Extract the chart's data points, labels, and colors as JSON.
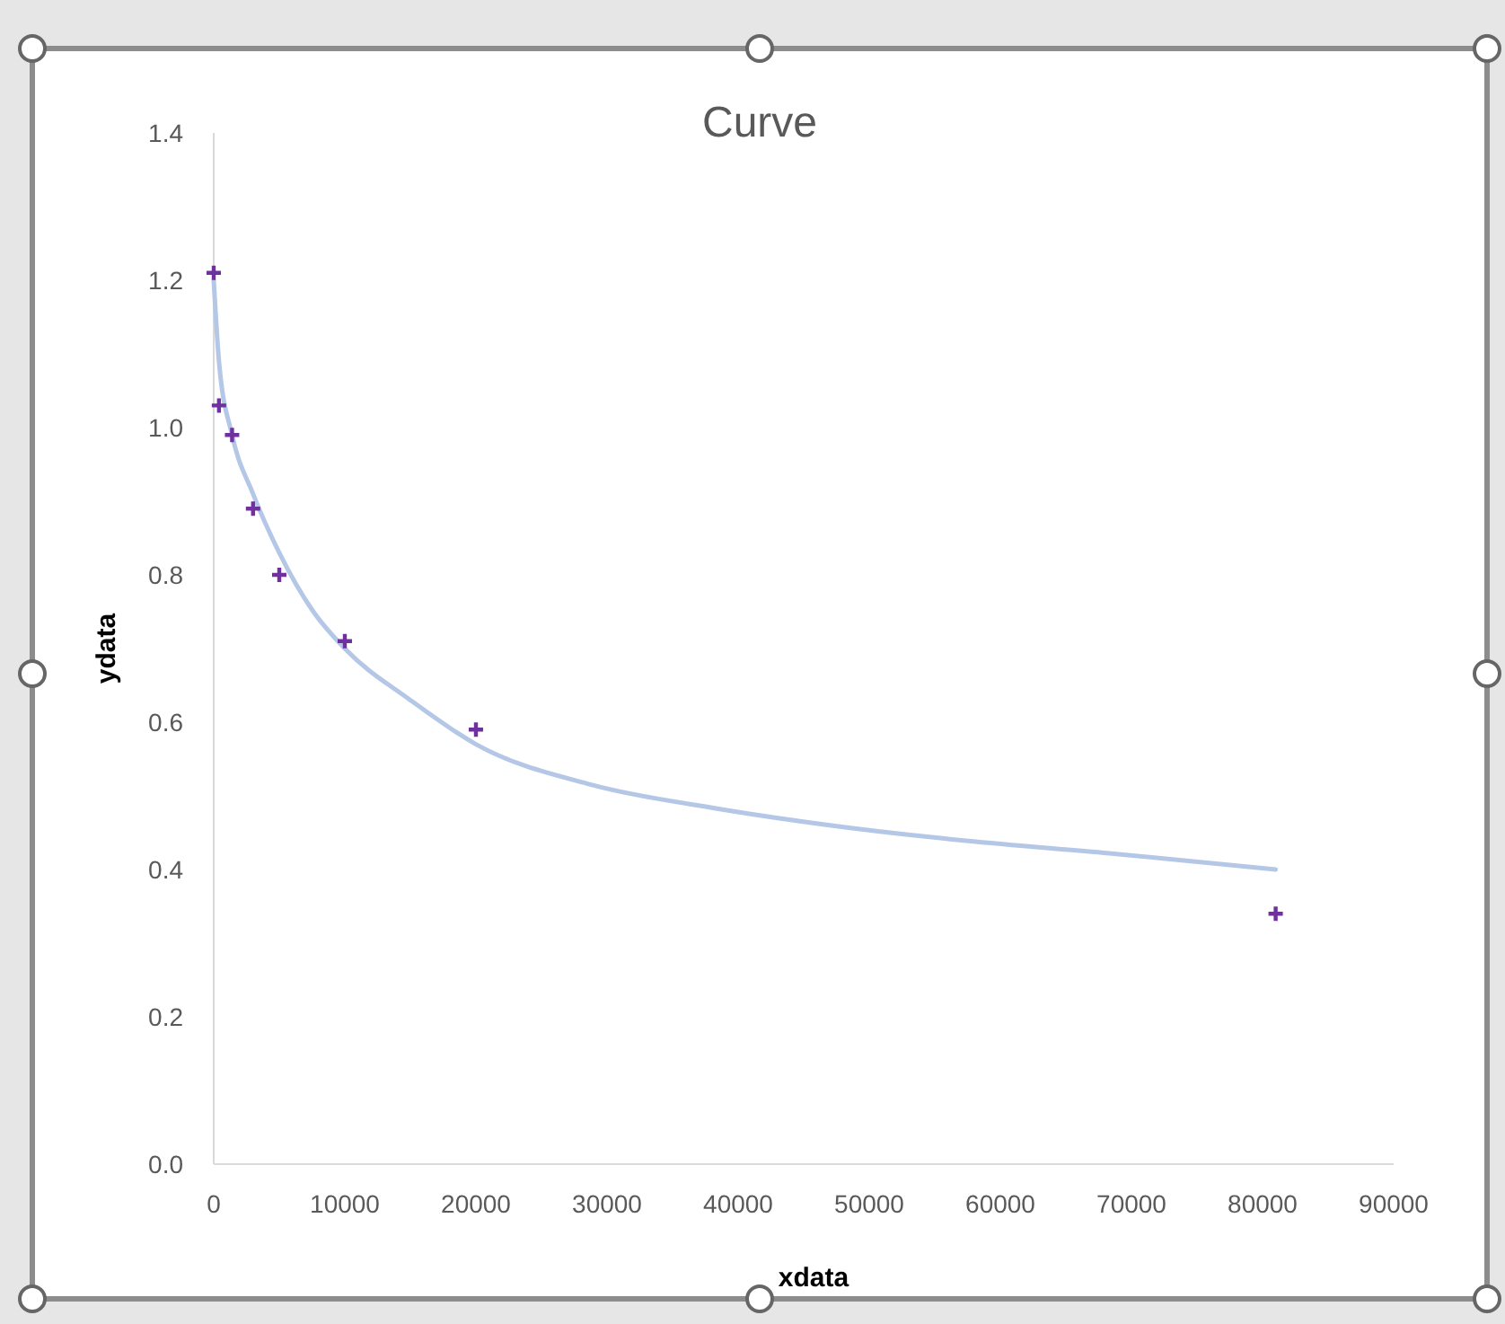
{
  "chart_data": {
    "type": "scatter",
    "title": "Curve",
    "xlabel": "xdata",
    "ylabel": "ydata",
    "xlim": [
      0,
      90000
    ],
    "xticks": [
      0,
      10000,
      20000,
      30000,
      40000,
      50000,
      60000,
      70000,
      80000,
      90000
    ],
    "ylim": [
      0,
      1.4
    ],
    "yticks": [
      {
        "value": 0,
        "label": "0.0"
      },
      0.2,
      0.4,
      0.6,
      0.8,
      {
        "value": 1,
        "label": "1.0"
      },
      1.2,
      1.4
    ],
    "grid": false,
    "series": [
      {
        "color": "#7030a0",
        "marker": "cross",
        "x": [
          0,
          400,
          1400,
          3000,
          5000,
          10000,
          20000,
          81000
        ],
        "values": [
          1.21,
          1.03,
          0.99,
          0.89,
          0.8,
          0.71,
          0.59,
          0.34
        ]
      },
      {
        "type": "line",
        "color": "#b4c7e7",
        "marker": "none",
        "line_style": "solid",
        "x": [
          0,
          400,
          1400,
          3000,
          5000,
          7600,
          10000,
          15000,
          20000,
          28800,
          38300,
          47900,
          57400,
          68300,
          81000
        ],
        "values": [
          1.2,
          1.09,
          0.99,
          0.91,
          0.83,
          0.75,
          0.7,
          0.63,
          0.57,
          0.515,
          0.483,
          0.458,
          0.439,
          0.422,
          0.4
        ]
      }
    ]
  }
}
